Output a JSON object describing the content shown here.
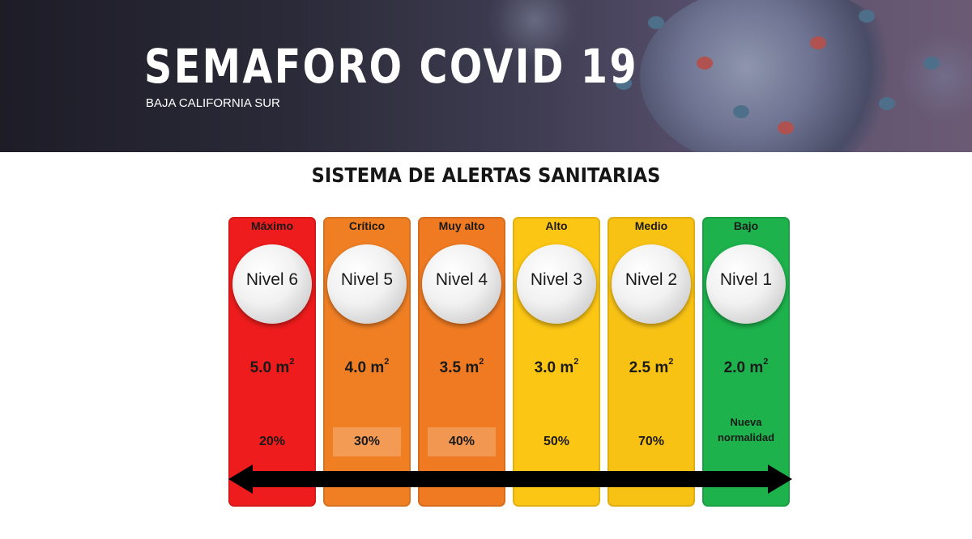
{
  "banner": {
    "title": "SEMAFORO COVID 19",
    "subtitle": "BAJA CALIFORNIA SUR"
  },
  "heading": "SISTEMA DE ALERTAS SANITARIAS",
  "levels": [
    {
      "label": "Máximo",
      "level": "Nivel 6",
      "area": "5.0 m",
      "exp": "2",
      "pct": "20%",
      "color": "#ee1c1c"
    },
    {
      "label": "Crítico",
      "level": "Nivel 5",
      "area": "4.0 m",
      "exp": "2",
      "pct": "30%",
      "color": "#f07f24"
    },
    {
      "label": "Muy alto",
      "level": "Nivel 4",
      "area": "3.5 m",
      "exp": "2",
      "pct": "40%",
      "color": "#ef7a22"
    },
    {
      "label": "Alto",
      "level": "Nivel 3",
      "area": "3.0 m",
      "exp": "2",
      "pct": "50%",
      "color": "#fcc614"
    },
    {
      "label": "Medio",
      "level": "Nivel 2",
      "area": "2.5 m",
      "exp": "2",
      "pct": "70%",
      "color": "#f8c215"
    },
    {
      "label": "Bajo",
      "level": "Nivel 1",
      "area": "2.0 m",
      "exp": "2",
      "note_line1": "Nueva",
      "note_line2": "normalidad",
      "color": "#1db24c"
    }
  ]
}
